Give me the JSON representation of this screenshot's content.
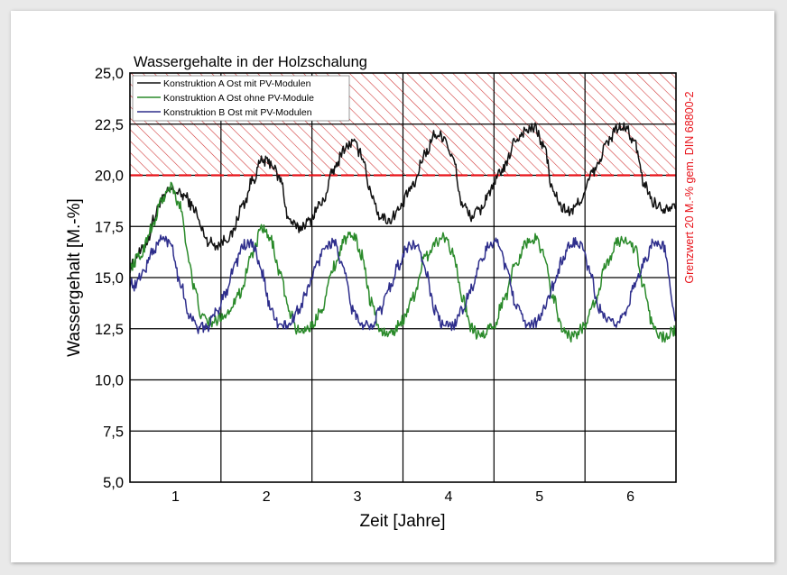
{
  "chart_data": {
    "type": "line",
    "title": "Wassergehalte in der Holzschalung",
    "xlabel": "Zeit [Jahre]",
    "ylabel": "Wassergehalt [M.-%]",
    "xlim": [
      0.5,
      6.5
    ],
    "ylim": [
      5.0,
      25.0
    ],
    "x_ticks": [
      1,
      2,
      3,
      4,
      5,
      6
    ],
    "x_tick_labels": [
      "1",
      "2",
      "3",
      "4",
      "5",
      "6"
    ],
    "y_ticks": [
      5.0,
      7.5,
      10.0,
      12.5,
      15.0,
      17.5,
      20.0,
      22.5,
      25.0
    ],
    "y_tick_labels": [
      "5,0",
      "7,5",
      "10,0",
      "12,5",
      "15,0",
      "17,5",
      "20,0",
      "22,5",
      "25,0"
    ],
    "grid": true,
    "legend_position": "top-left",
    "threshold": {
      "value": 20.0,
      "color": "#e8141b",
      "label": "Grenzwert 20 M.-% gem. DIN 68800-2",
      "hatched_region": [
        20.0,
        25.0
      ]
    },
    "series": [
      {
        "name": "Konstruktion A Ost mit PV-Modulen",
        "color": "#111111",
        "x": [
          0.5,
          0.6,
          0.7,
          0.75,
          0.85,
          0.95,
          1.1,
          1.2,
          1.3,
          1.35,
          1.45,
          1.6,
          1.75,
          1.85,
          1.95,
          2.05,
          2.15,
          2.25,
          2.35,
          2.45,
          2.6,
          2.75,
          2.85,
          2.95,
          3.05,
          3.15,
          3.25,
          3.35,
          3.45,
          3.6,
          3.75,
          3.85,
          3.95,
          4.05,
          4.15,
          4.25,
          4.35,
          4.45,
          4.6,
          4.75,
          4.85,
          4.95,
          5.05,
          5.15,
          5.25,
          5.35,
          5.45,
          5.6,
          5.75,
          5.85,
          5.95,
          6.05,
          6.15,
          6.25,
          6.35,
          6.5
        ],
        "values": [
          15.5,
          16.2,
          16.8,
          17.8,
          18.8,
          19.3,
          19.0,
          18.4,
          17.3,
          16.8,
          16.6,
          17.0,
          18.6,
          19.8,
          20.7,
          20.6,
          19.8,
          17.8,
          17.4,
          17.7,
          18.6,
          20.3,
          21.3,
          21.6,
          21.0,
          19.1,
          18.0,
          17.8,
          18.3,
          19.4,
          21.1,
          22.0,
          21.9,
          20.8,
          18.6,
          18.0,
          18.3,
          19.2,
          20.3,
          21.8,
          22.2,
          22.3,
          21.4,
          19.2,
          18.4,
          18.2,
          18.8,
          20.2,
          21.6,
          22.3,
          22.3,
          21.5,
          19.6,
          18.7,
          18.4,
          18.6
        ]
      },
      {
        "name": "Konstruktion A Ost ohne PV-Module",
        "color": "#2a8a2a",
        "x": [
          0.5,
          0.6,
          0.75,
          0.85,
          0.95,
          1.05,
          1.15,
          1.2,
          1.3,
          1.4,
          1.55,
          1.7,
          1.85,
          1.95,
          2.05,
          2.15,
          2.25,
          2.35,
          2.5,
          2.6,
          2.75,
          2.85,
          2.95,
          3.05,
          3.15,
          3.25,
          3.35,
          3.5,
          3.6,
          3.75,
          3.85,
          3.95,
          4.05,
          4.15,
          4.25,
          4.35,
          4.5,
          4.6,
          4.75,
          4.85,
          4.95,
          5.05,
          5.15,
          5.25,
          5.35,
          5.5,
          5.6,
          5.75,
          5.85,
          5.95,
          6.05,
          6.15,
          6.25,
          6.35,
          6.5
        ],
        "values": [
          15.5,
          16.0,
          17.5,
          18.8,
          19.4,
          18.5,
          16.0,
          14.5,
          13.0,
          12.8,
          13.2,
          14.2,
          16.2,
          17.4,
          16.8,
          15.2,
          13.3,
          12.4,
          12.6,
          13.5,
          15.6,
          16.8,
          17.1,
          16.1,
          13.8,
          12.4,
          12.2,
          12.9,
          14.0,
          16.0,
          16.7,
          17.0,
          16.3,
          14.0,
          12.5,
          12.1,
          12.7,
          13.8,
          15.8,
          16.7,
          16.9,
          16.2,
          14.0,
          12.5,
          12.1,
          12.6,
          13.7,
          15.8,
          16.7,
          16.9,
          16.4,
          14.4,
          12.6,
          12.1,
          12.4
        ]
      },
      {
        "name": "Konstruktion B Ost mit PV-Modulen",
        "color": "#2e2e8c",
        "x": [
          0.5,
          0.55,
          0.65,
          0.75,
          0.85,
          0.95,
          1.05,
          1.15,
          1.25,
          1.35,
          1.45,
          1.55,
          1.65,
          1.75,
          1.85,
          1.95,
          2.05,
          2.15,
          2.25,
          2.35,
          2.45,
          2.55,
          2.65,
          2.75,
          2.85,
          2.95,
          3.05,
          3.15,
          3.25,
          3.35,
          3.45,
          3.55,
          3.65,
          3.75,
          3.85,
          3.95,
          4.05,
          4.15,
          4.25,
          4.35,
          4.45,
          4.55,
          4.65,
          4.75,
          4.85,
          4.95,
          5.05,
          5.15,
          5.25,
          5.35,
          5.45,
          5.55,
          5.65,
          5.75,
          5.85,
          5.95,
          6.05,
          6.15,
          6.25,
          6.35,
          6.5
        ],
        "values": [
          14.8,
          14.6,
          15.3,
          16.3,
          16.9,
          16.7,
          14.8,
          13.2,
          12.5,
          12.6,
          13.3,
          14.3,
          15.6,
          16.6,
          16.6,
          15.2,
          13.4,
          12.6,
          12.7,
          13.4,
          14.4,
          15.6,
          16.6,
          16.7,
          15.3,
          13.4,
          12.6,
          12.7,
          13.4,
          14.5,
          15.6,
          16.5,
          16.6,
          15.3,
          13.4,
          12.6,
          12.7,
          13.4,
          14.5,
          15.7,
          16.6,
          16.7,
          15.3,
          13.5,
          12.7,
          12.8,
          13.4,
          14.6,
          15.8,
          16.7,
          16.7,
          15.3,
          13.5,
          12.8,
          12.8,
          13.4,
          14.6,
          15.8,
          16.7,
          16.6,
          13.1
        ]
      }
    ]
  }
}
